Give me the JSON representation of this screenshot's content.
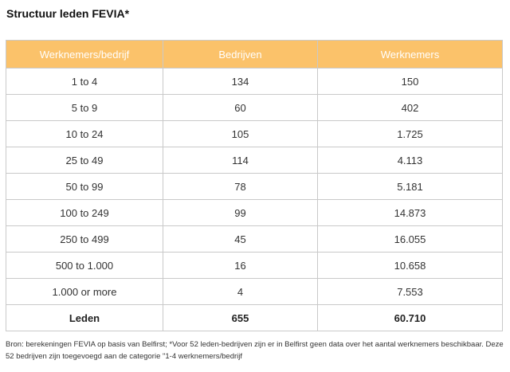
{
  "title": "Structuur leden FEVIA*",
  "table": {
    "headers": [
      "Werknemers/bedrijf",
      "Bedrijven",
      "Werknemers"
    ],
    "rows": [
      [
        "1  to 4",
        "134",
        "150"
      ],
      [
        "5  to 9",
        "60",
        "402"
      ],
      [
        "10  to 24",
        "105",
        "1.725"
      ],
      [
        "25  to 49",
        "114",
        "4.113"
      ],
      [
        "50  to 99",
        "78",
        "5.181"
      ],
      [
        "100  to 249",
        "99",
        "14.873"
      ],
      [
        "250  to 499",
        "45",
        "16.055"
      ],
      [
        "500  to 1.000",
        "16",
        "10.658"
      ],
      [
        "1.000 or more",
        "4",
        "7.553"
      ]
    ],
    "total": [
      "Leden",
      "655",
      "60.710"
    ]
  },
  "source": "Bron: berekeningen FEVIA op basis van Belfirst; *Voor 52 leden-bedrijven zijn er in Belfirst geen data over het aantal werknemers beschikbaar. Deze 52 bedrijven zijn toegevoegd aan de categorie \"1-4 werknemers/bedrijf"
}
